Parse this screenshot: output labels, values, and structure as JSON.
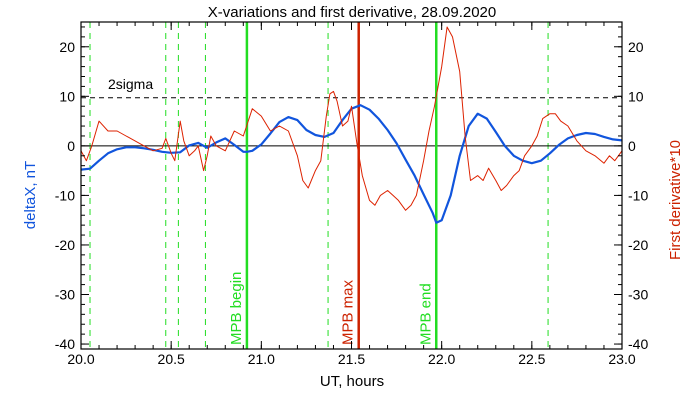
{
  "chart_data": {
    "type": "line",
    "title": "X-variations and first derivative, 28.09.2020",
    "xlabel": "UT, hours",
    "ylabel_left": "deltaX, nT",
    "ylabel_right": "First derivative*10",
    "xlim": [
      20.0,
      23.0
    ],
    "ylim": [
      -41,
      25
    ],
    "x_ticks": [
      20.0,
      20.5,
      21.0,
      21.5,
      22.0,
      22.5,
      23.0
    ],
    "x_tick_labels": [
      "20.0",
      "20.5",
      "21.0",
      "21.5",
      "22.0",
      "22.5",
      "23.0"
    ],
    "y_ticks": [
      -40,
      -30,
      -20,
      -10,
      0,
      10,
      20
    ],
    "y_tick_labels": [
      "-40",
      "-30",
      "-20",
      "-10",
      "0",
      "10",
      "20"
    ],
    "sigma_level": 9.7,
    "sigma_label": "2sigma",
    "zero_line": 0,
    "colors": {
      "deltaX": "#1155dd",
      "derivative": "#dd2200",
      "green": "#22dd22",
      "red": "#cc2200",
      "ylabel_left": "#1155dd",
      "ylabel_right": "#cc2200"
    },
    "dashed_green_lines": [
      20.05,
      20.47,
      20.54,
      20.69,
      21.37,
      22.59
    ],
    "markers": [
      {
        "x": 20.92,
        "label": "MPB begin",
        "color": "#22dd22"
      },
      {
        "x": 21.54,
        "label": "MPB max",
        "color": "#cc2200"
      },
      {
        "x": 21.97,
        "label": "MPB end",
        "color": "#22dd22"
      }
    ],
    "series": [
      {
        "key": "deltaX",
        "x": [
          20.0,
          20.05,
          20.1,
          20.15,
          20.2,
          20.25,
          20.3,
          20.35,
          20.4,
          20.45,
          20.5,
          20.55,
          20.6,
          20.65,
          20.7,
          20.75,
          20.8,
          20.85,
          20.9,
          20.92,
          20.95,
          21.0,
          21.05,
          21.1,
          21.15,
          21.2,
          21.25,
          21.3,
          21.35,
          21.4,
          21.45,
          21.5,
          21.55,
          21.6,
          21.65,
          21.7,
          21.75,
          21.8,
          21.85,
          21.9,
          21.95,
          21.97,
          22.0,
          22.05,
          22.1,
          22.15,
          22.2,
          22.25,
          22.3,
          22.35,
          22.4,
          22.45,
          22.5,
          22.55,
          22.6,
          22.65,
          22.7,
          22.75,
          22.8,
          22.85,
          22.9,
          22.95,
          23.0
        ],
        "y": [
          -4.8,
          -4.6,
          -3.0,
          -1.5,
          -0.7,
          -0.3,
          -0.3,
          -0.5,
          -0.8,
          -1.2,
          -1.4,
          -1.3,
          0.1,
          0.6,
          -0.4,
          0.7,
          1.5,
          0.2,
          -1.2,
          -1.2,
          -1.0,
          0.3,
          2.5,
          4.8,
          5.8,
          5.2,
          3.2,
          2.2,
          1.8,
          2.6,
          5.2,
          7.5,
          8.2,
          7.3,
          5.5,
          3.2,
          0.5,
          -2.8,
          -6.0,
          -9.8,
          -13.5,
          -15.5,
          -15.0,
          -10.0,
          -2.0,
          4.0,
          6.5,
          5.5,
          2.8,
          0.0,
          -2.0,
          -3.0,
          -3.5,
          -3.0,
          -1.5,
          0.2,
          1.5,
          2.2,
          2.6,
          2.4,
          1.8,
          1.3,
          1.1
        ]
      },
      {
        "key": "derivative",
        "x": [
          20.0,
          20.03,
          20.06,
          20.1,
          20.15,
          20.2,
          20.25,
          20.3,
          20.35,
          20.4,
          20.45,
          20.47,
          20.5,
          20.52,
          20.55,
          20.57,
          20.6,
          20.63,
          20.65,
          20.68,
          20.7,
          20.72,
          20.75,
          20.8,
          20.85,
          20.9,
          20.95,
          21.0,
          21.05,
          21.1,
          21.15,
          21.2,
          21.23,
          21.26,
          21.3,
          21.33,
          21.36,
          21.38,
          21.4,
          21.42,
          21.45,
          21.48,
          21.5,
          21.53,
          21.56,
          21.6,
          21.63,
          21.66,
          21.7,
          21.73,
          21.76,
          21.8,
          21.83,
          21.86,
          21.9,
          21.93,
          21.96,
          22.0,
          22.03,
          22.06,
          22.1,
          22.13,
          22.16,
          22.2,
          22.23,
          22.26,
          22.3,
          22.33,
          22.36,
          22.4,
          22.43,
          22.46,
          22.5,
          22.53,
          22.56,
          22.6,
          22.63,
          22.66,
          22.7,
          22.75,
          22.8,
          22.85,
          22.9,
          22.93,
          22.96,
          23.0
        ],
        "y": [
          -1.0,
          -3.0,
          0.0,
          5.0,
          3.0,
          3.0,
          2.0,
          1.0,
          0.0,
          -1.0,
          -0.5,
          1.5,
          -1.5,
          -3.0,
          5.0,
          1.0,
          -2.0,
          -1.0,
          0.0,
          -5.0,
          -2.0,
          2.0,
          0.0,
          -1.0,
          3.0,
          2.0,
          7.5,
          6.0,
          3.0,
          4.0,
          3.0,
          -2.0,
          -7.0,
          -8.5,
          -5.0,
          -3.0,
          6.0,
          10.5,
          11.0,
          9.0,
          4.0,
          5.0,
          8.0,
          0.5,
          -6.0,
          -11.0,
          -12.0,
          -10.0,
          -9.0,
          -10.0,
          -11.0,
          -13.0,
          -12.0,
          -10.0,
          -3.0,
          3.0,
          8.0,
          16.0,
          24.0,
          22.0,
          15.0,
          2.0,
          -7.0,
          -6.0,
          -7.0,
          -4.5,
          -7.0,
          -9.0,
          -8.0,
          -6.0,
          -5.0,
          -2.0,
          0.0,
          2.0,
          5.5,
          6.5,
          6.5,
          5.0,
          4.0,
          1.0,
          -1.0,
          -2.0,
          -3.5,
          -2.0,
          -3.0,
          -1.0
        ]
      }
    ]
  }
}
